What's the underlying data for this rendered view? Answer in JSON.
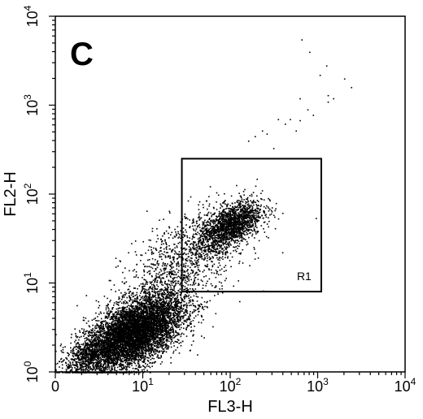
{
  "chart_data": {
    "type": "scatter",
    "panel_label": "C",
    "xlabel": "FL3-H",
    "ylabel": "FL2-H",
    "x_scale": "log",
    "y_scale": "log",
    "xlim": [
      1,
      10000
    ],
    "ylim": [
      1,
      10000
    ],
    "x_ticks": [
      {
        "base": "0",
        "exp": "",
        "value": 1
      },
      {
        "base": "10",
        "exp": "1",
        "value": 10
      },
      {
        "base": "10",
        "exp": "2",
        "value": 100
      },
      {
        "base": "10",
        "exp": "3",
        "value": 1000
      },
      {
        "base": "10",
        "exp": "4",
        "value": 10000
      }
    ],
    "y_ticks": [
      {
        "base": "10",
        "exp": "0",
        "value": 1
      },
      {
        "base": "10",
        "exp": "1",
        "value": 10
      },
      {
        "base": "10",
        "exp": "2",
        "value": 100
      },
      {
        "base": "10",
        "exp": "3",
        "value": 1000
      },
      {
        "base": "10",
        "exp": "4",
        "value": 10000
      }
    ],
    "gate": {
      "name": "R1",
      "x_range": [
        28,
        1100
      ],
      "y_range": [
        8,
        250
      ]
    },
    "populations": [
      {
        "center": [
          8,
          2.8
        ],
        "spread": [
          0.28,
          0.22
        ],
        "count": 6500
      },
      {
        "center": [
          100,
          45
        ],
        "spread": [
          0.18,
          0.14
        ],
        "count": 1700
      },
      {
        "center": [
          30,
          18
        ],
        "spread": [
          0.35,
          0.3
        ],
        "count": 1100
      },
      {
        "center": [
          2.5,
          1.6
        ],
        "spread": [
          0.15,
          0.12
        ],
        "count": 700
      }
    ],
    "sparse_points": [
      [
        650,
        5500
      ],
      [
        800,
        4000
      ],
      [
        1250,
        2800
      ],
      [
        1050,
        2200
      ],
      [
        1300,
        1300
      ],
      [
        2000,
        2000
      ],
      [
        620,
        1200
      ],
      [
        760,
        900
      ],
      [
        1300,
        1100
      ],
      [
        480,
        700
      ],
      [
        350,
        700
      ],
      [
        260,
        480
      ],
      [
        420,
        620
      ],
      [
        560,
        520
      ],
      [
        190,
        450
      ],
      [
        230,
        520
      ],
      [
        160,
        400
      ],
      [
        310,
        330
      ],
      [
        620,
        680
      ],
      [
        880,
        780
      ],
      [
        1500,
        1200
      ],
      [
        2400,
        1600
      ]
    ],
    "grid": false,
    "colors": {
      "points": "#000000",
      "background": "#ffffff",
      "frame": "#000000"
    }
  }
}
